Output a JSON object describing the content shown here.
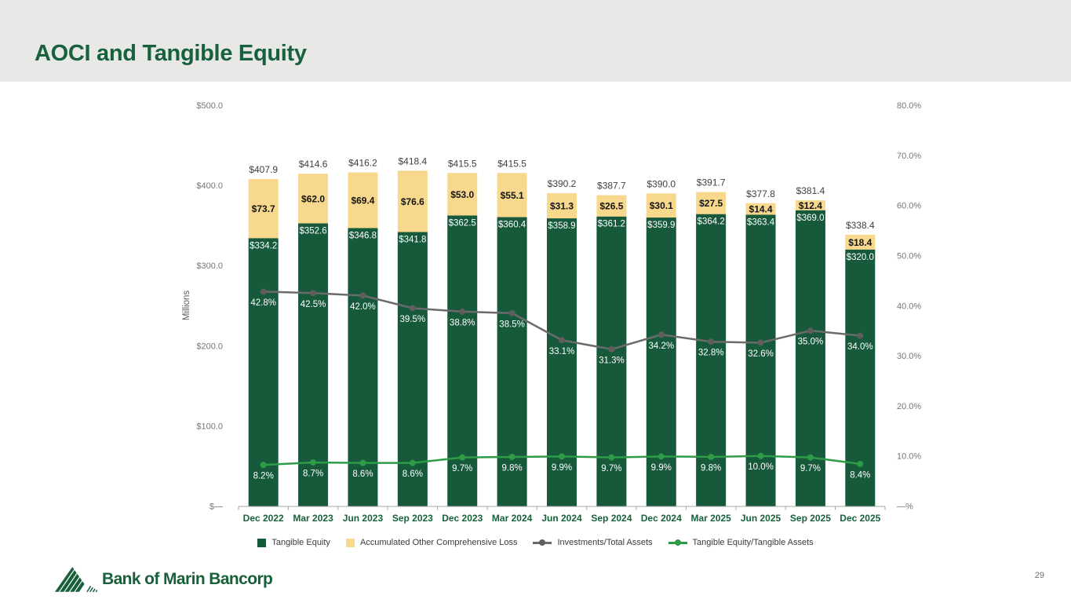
{
  "slide": {
    "title": "AOCI and Tangible Equity",
    "page_number": "29",
    "logo_text": "Bank of Marin Bancorp"
  },
  "chart_data": {
    "type": "bar",
    "subtype": "stacked-bar-with-lines",
    "categories": [
      "Dec 2022",
      "Mar 2023",
      "Jun 2023",
      "Sep 2023",
      "Dec 2023",
      "Mar 2024",
      "Jun 2024",
      "Sep 2024",
      "Dec 2024",
      "Mar 2025",
      "Jun 2025",
      "Sep 2025",
      "Dec 2025"
    ],
    "y_left": {
      "title": "Millions",
      "max": 500,
      "min": 0,
      "ticks": [
        "$500.0",
        "$400.0",
        "$300.0",
        "$200.0",
        "$100.0",
        "$—"
      ]
    },
    "y_right": {
      "max": 80,
      "min": 0,
      "ticks": [
        "80.0%",
        "70.0%",
        "60.0%",
        "50.0%",
        "40.0%",
        "30.0%",
        "20.0%",
        "10.0%",
        "—%"
      ]
    },
    "bar_totals": [
      "$407.9",
      "$414.6",
      "$416.2",
      "$418.4",
      "$415.5",
      "$415.5",
      "$390.2",
      "$387.7",
      "$390.0",
      "$391.7",
      "$377.8",
      "$381.4",
      "$338.4"
    ],
    "series": [
      {
        "name": "Tangible Equity",
        "type": "bar",
        "color": "#17593B",
        "values": [
          334.2,
          352.6,
          346.8,
          341.8,
          362.5,
          360.4,
          358.9,
          361.2,
          359.9,
          364.2,
          363.4,
          369.0,
          320.0
        ],
        "labels": [
          "$334.2",
          "$352.6",
          "$346.8",
          "$341.8",
          "$362.5",
          "$360.4",
          "$358.9",
          "$361.2",
          "$359.9",
          "$364.2",
          "$363.4",
          "$369.0",
          "$320.0"
        ]
      },
      {
        "name": "Accumulated Other Comprehensive Loss",
        "type": "bar",
        "color": "#F8D88C",
        "values": [
          73.7,
          62.0,
          69.4,
          76.6,
          53.0,
          55.1,
          31.3,
          26.5,
          30.1,
          27.5,
          14.4,
          12.4,
          18.4
        ],
        "labels": [
          "$73.7",
          "$62.0",
          "$69.4",
          "$76.6",
          "$53.0",
          "$55.1",
          "$31.3",
          "$26.5",
          "$30.1",
          "$27.5",
          "$14.4",
          "$12.4",
          "$18.4"
        ]
      },
      {
        "name": "Investments/Total Assets",
        "type": "line",
        "axis": "right",
        "color": "#6B6B6B",
        "marker_color": "#5E5E5E",
        "values": [
          42.8,
          42.5,
          42.0,
          39.5,
          38.8,
          38.5,
          33.1,
          31.3,
          34.2,
          32.8,
          32.6,
          35.0,
          34.0
        ],
        "labels": [
          "42.8%",
          "42.5%",
          "42.0%",
          "39.5%",
          "38.8%",
          "38.5%",
          "33.1%",
          "31.3%",
          "34.2%",
          "32.8%",
          "32.6%",
          "35.0%",
          "34.0%"
        ]
      },
      {
        "name": "Tangible Equity/Tangible Assets",
        "type": "line",
        "axis": "right",
        "color": "#2E9C47",
        "marker_color": "#2E9C47",
        "values": [
          8.2,
          8.7,
          8.6,
          8.6,
          9.7,
          9.8,
          9.9,
          9.7,
          9.9,
          9.8,
          10.0,
          9.7,
          8.4
        ],
        "labels": [
          "8.2%",
          "8.7%",
          "8.6%",
          "8.6%",
          "9.7%",
          "9.8%",
          "9.9%",
          "9.7%",
          "9.9%",
          "9.8%",
          "10.0%",
          "9.7%",
          "8.4%"
        ]
      }
    ],
    "legend_position": "bottom",
    "grid": false
  }
}
